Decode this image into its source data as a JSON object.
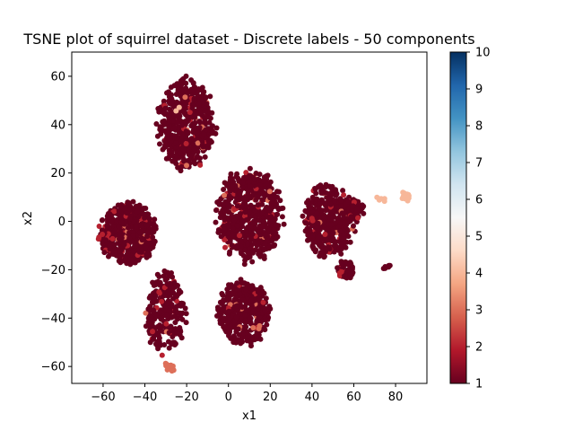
{
  "chart_data": {
    "type": "scatter",
    "title": "TSNE plot of squirrel dataset - Discrete labels - 50 components",
    "xlabel": "x1",
    "ylabel": "x2",
    "xlim": [
      -75,
      95
    ],
    "ylim": [
      -67,
      70
    ],
    "xticks": [
      -60,
      -40,
      -20,
      0,
      20,
      40,
      60,
      80
    ],
    "yticks": [
      -60,
      -40,
      -20,
      0,
      20,
      40,
      60
    ],
    "colormap": "RdBu",
    "colorbar": {
      "min": 1,
      "max": 10,
      "ticks": [
        1,
        2,
        3,
        4,
        5,
        6,
        7,
        8,
        9,
        10
      ]
    },
    "grid": false,
    "clusters": [
      {
        "cx": -20,
        "cy": 40,
        "rx": 13,
        "ry": 18,
        "n": 520,
        "label": 1
      },
      {
        "cx": -48,
        "cy": -5,
        "rx": 13,
        "ry": 12,
        "n": 520,
        "label": 1
      },
      {
        "cx": 10,
        "cy": 2,
        "rx": 15,
        "ry": 18,
        "n": 620,
        "label": 1
      },
      {
        "cx": 48,
        "cy": 0,
        "rx": 12,
        "ry": 14,
        "n": 420,
        "label": 1
      },
      {
        "cx": 7,
        "cy": -38,
        "rx": 12,
        "ry": 13,
        "n": 420,
        "label": 1
      },
      {
        "cx": -30,
        "cy": -38,
        "rx": 9,
        "ry": 16,
        "n": 260,
        "label": 1
      },
      {
        "cx": 56,
        "cy": -20,
        "rx": 4,
        "ry": 4,
        "n": 70,
        "label": 1
      },
      {
        "cx": 60,
        "cy": 5,
        "rx": 5,
        "ry": 4,
        "n": 60,
        "label": 1
      }
    ],
    "highlights": [
      {
        "x": 85,
        "y": 10,
        "label": 4,
        "n": 30
      },
      {
        "x": 72,
        "y": 9,
        "label": 4,
        "n": 6
      },
      {
        "x": -28,
        "y": -60,
        "label": 3,
        "n": 20
      },
      {
        "x": -25,
        "y": 46,
        "label": 4,
        "n": 2
      },
      {
        "x": 76,
        "y": -18,
        "label": 1,
        "n": 8
      }
    ]
  }
}
